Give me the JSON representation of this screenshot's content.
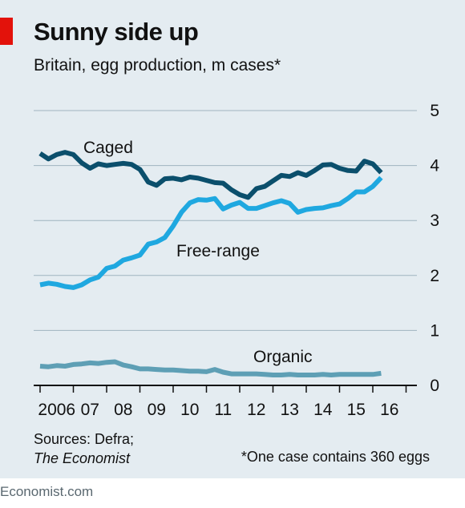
{
  "header": {
    "title": "Sunny side up",
    "subtitle": "Britain, egg production, m cases*"
  },
  "footer": {
    "sources_label": "Sources: Defra;",
    "sources_publication": "The Economist",
    "footnote": "*One case contains 360 eggs",
    "brand": "Economist.com"
  },
  "colors": {
    "background": "#e4ecf1",
    "accent": "#e3120b",
    "caged": "#0b4f6c",
    "free_range": "#1fa8e0",
    "organic": "#5e9fb5",
    "grid": "#9fb3bf"
  },
  "chart_data": {
    "type": "line",
    "title": "Sunny side up",
    "subtitle": "Britain, egg production, m cases*",
    "ylim": [
      0,
      5
    ],
    "yticks": [
      0,
      1,
      2,
      3,
      4,
      5
    ],
    "y_axis_side": "right",
    "grid": true,
    "xlim": [
      2006,
      2017
    ],
    "xticks": [
      {
        "value": 2006,
        "label": "2006"
      },
      {
        "value": 2007,
        "label": "07"
      },
      {
        "value": 2008,
        "label": "08"
      },
      {
        "value": 2009,
        "label": "09"
      },
      {
        "value": 2010,
        "label": "10"
      },
      {
        "value": 2011,
        "label": "11"
      },
      {
        "value": 2012,
        "label": "12"
      },
      {
        "value": 2013,
        "label": "13"
      },
      {
        "value": 2014,
        "label": "14"
      },
      {
        "value": 2015,
        "label": "15"
      },
      {
        "value": 2016,
        "label": "16"
      }
    ],
    "x": [
      2006.0,
      2006.25,
      2006.5,
      2006.75,
      2007.0,
      2007.25,
      2007.5,
      2007.75,
      2008.0,
      2008.25,
      2008.5,
      2008.75,
      2009.0,
      2009.25,
      2009.5,
      2009.75,
      2010.0,
      2010.25,
      2010.5,
      2010.75,
      2011.0,
      2011.25,
      2011.5,
      2011.75,
      2012.0,
      2012.25,
      2012.5,
      2012.75,
      2013.0,
      2013.25,
      2013.5,
      2013.75,
      2014.0,
      2014.25,
      2014.5,
      2014.75,
      2015.0,
      2015.25,
      2015.5,
      2015.75,
      2016.0,
      2016.25
    ],
    "series": [
      {
        "name": "Caged",
        "color": "#0b4f6c",
        "values": [
          4.22,
          4.12,
          4.2,
          4.24,
          4.2,
          4.05,
          3.95,
          4.03,
          4.0,
          4.02,
          4.04,
          4.02,
          3.93,
          3.7,
          3.64,
          3.76,
          3.77,
          3.74,
          3.79,
          3.77,
          3.73,
          3.69,
          3.68,
          3.56,
          3.47,
          3.42,
          3.58,
          3.62,
          3.72,
          3.82,
          3.8,
          3.87,
          3.82,
          3.91,
          4.01,
          4.02,
          3.95,
          3.91,
          3.9,
          4.08,
          4.03,
          3.87
        ]
      },
      {
        "name": "Free-range",
        "color": "#1fa8e0",
        "values": [
          1.83,
          1.86,
          1.84,
          1.8,
          1.78,
          1.83,
          1.92,
          1.97,
          2.13,
          2.17,
          2.28,
          2.32,
          2.37,
          2.57,
          2.61,
          2.69,
          2.9,
          3.15,
          3.32,
          3.38,
          3.37,
          3.4,
          3.21,
          3.28,
          3.33,
          3.22,
          3.22,
          3.27,
          3.32,
          3.36,
          3.31,
          3.15,
          3.2,
          3.22,
          3.23,
          3.27,
          3.3,
          3.4,
          3.52,
          3.52,
          3.62,
          3.78
        ]
      },
      {
        "name": "Organic",
        "color": "#5e9fb5",
        "values": [
          0.35,
          0.34,
          0.36,
          0.35,
          0.38,
          0.39,
          0.41,
          0.4,
          0.42,
          0.43,
          0.37,
          0.34,
          0.3,
          0.3,
          0.29,
          0.28,
          0.28,
          0.27,
          0.26,
          0.26,
          0.25,
          0.29,
          0.24,
          0.21,
          0.21,
          0.21,
          0.21,
          0.2,
          0.19,
          0.19,
          0.2,
          0.19,
          0.19,
          0.19,
          0.2,
          0.19,
          0.2,
          0.2,
          0.2,
          0.2,
          0.2,
          0.22
        ]
      }
    ],
    "annotations": [
      {
        "text": "Caged",
        "series": "Caged"
      },
      {
        "text": "Free-range",
        "series": "Free-range"
      },
      {
        "text": "Organic",
        "series": "Organic"
      }
    ]
  }
}
